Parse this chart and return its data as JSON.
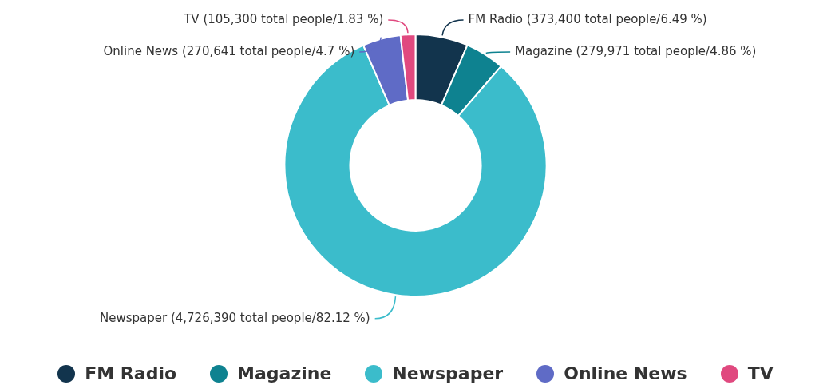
{
  "chart_data": {
    "type": "donut",
    "categories": [
      "FM Radio",
      "Magazine",
      "Newspaper",
      "Online News",
      "TV"
    ],
    "values": [
      6.49,
      4.86,
      82.12,
      4.7,
      1.83
    ],
    "value_labels": [
      "(373,400 total people/6.49 %)",
      "(279,971 total people/4.86 %)",
      "(4,726,390 total people/82.12 %)",
      "(270,641 total people/4.7 %)",
      "(105,300 total people/1.83 %)"
    ],
    "colors": [
      "#12344d",
      "#0e8290",
      "#3bbccb",
      "#5f6bc6",
      "#e0497f"
    ],
    "legend": "bottom"
  }
}
